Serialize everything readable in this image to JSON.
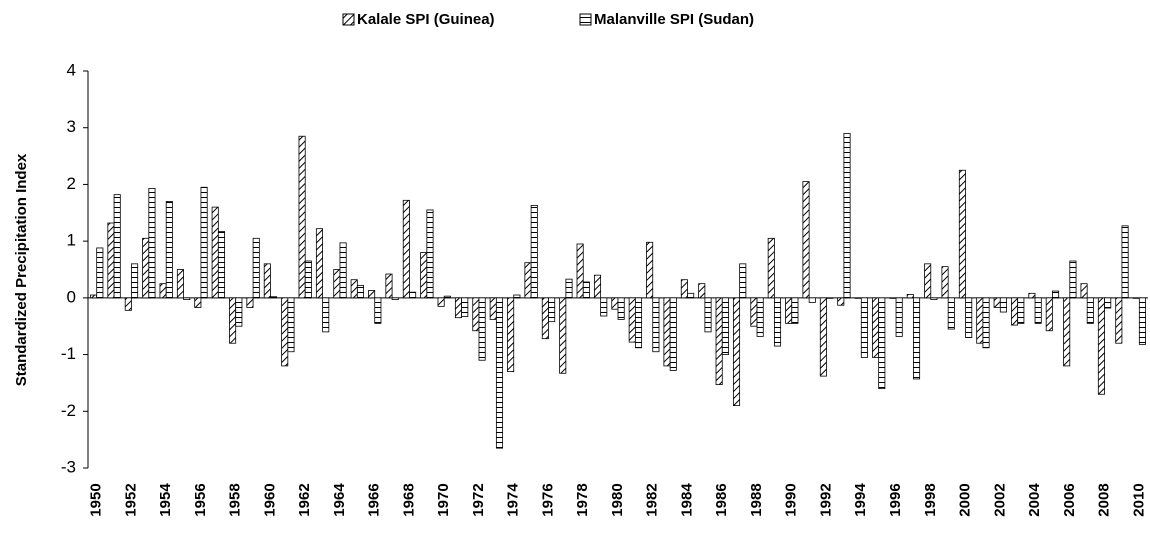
{
  "chart_data": {
    "type": "bar",
    "y_label": "Standardized Precipitation Index",
    "x": [
      1950,
      1951,
      1952,
      1953,
      1954,
      1955,
      1956,
      1957,
      1958,
      1959,
      1960,
      1961,
      1962,
      1963,
      1964,
      1965,
      1966,
      1967,
      1968,
      1969,
      1970,
      1971,
      1972,
      1973,
      1974,
      1975,
      1976,
      1977,
      1978,
      1979,
      1980,
      1981,
      1982,
      1983,
      1984,
      1985,
      1986,
      1987,
      1988,
      1989,
      1990,
      1991,
      1992,
      1993,
      1994,
      1995,
      1996,
      1997,
      1998,
      1999,
      2000,
      2001,
      2002,
      2003,
      2004,
      2005,
      2006,
      2007,
      2008,
      2009,
      2010
    ],
    "xlim": [
      1949.5,
      2010.5
    ],
    "xticks": [
      1950,
      1952,
      1954,
      1956,
      1958,
      1960,
      1962,
      1964,
      1966,
      1968,
      1970,
      1972,
      1974,
      1976,
      1978,
      1980,
      1982,
      1984,
      1986,
      1988,
      1990,
      1992,
      1994,
      1996,
      1998,
      2000,
      2002,
      2004,
      2006,
      2008,
      2010
    ],
    "ylim": [
      -3,
      4
    ],
    "yticks": [
      -3,
      -2,
      -1,
      0,
      1,
      2,
      3,
      4
    ],
    "legend": "top",
    "series": [
      {
        "name": "Kalale SPI (Guinea)",
        "color": "#000000",
        "pattern": "diagonal",
        "values": [
          0.05,
          1.32,
          -0.22,
          1.05,
          0.25,
          0.5,
          -0.17,
          1.6,
          -0.8,
          -0.17,
          0.6,
          -1.2,
          2.85,
          1.22,
          0.5,
          0.32,
          0.13,
          0.42,
          1.72,
          0.8,
          -0.15,
          -0.35,
          -0.58,
          -0.38,
          -1.3,
          0.62,
          -0.72,
          -1.33,
          0.95,
          0.4,
          -0.2,
          -0.78,
          0.98,
          -1.2,
          0.32,
          0.25,
          -1.53,
          -1.9,
          -0.5,
          1.05,
          -0.45,
          2.05,
          -1.38,
          -0.13,
          0,
          -1.05,
          0,
          0.06,
          0.6,
          0.55,
          2.25,
          -0.8,
          -0.17,
          -0.48,
          0.08,
          -0.58,
          -1.2,
          0.25,
          -1.7,
          -0.8,
          0
        ]
      },
      {
        "name": "Malanville SPI (Sudan)",
        "color": "#000000",
        "pattern": "horizontal",
        "values": [
          0.88,
          1.82,
          0.6,
          1.93,
          1.7,
          -0.03,
          1.95,
          1.17,
          -0.5,
          1.05,
          0.02,
          -0.95,
          0.65,
          -0.6,
          0.97,
          0.22,
          -0.45,
          -0.03,
          0.1,
          1.55,
          0.03,
          -0.33,
          -1.1,
          -2.65,
          0.05,
          1.63,
          -0.42,
          0.33,
          0.28,
          -0.32,
          -0.38,
          -0.88,
          -0.95,
          -1.28,
          0.08,
          -0.6,
          -1.0,
          0.6,
          -0.68,
          -0.85,
          -0.45,
          -0.08,
          0,
          2.9,
          -1.05,
          -1.6,
          -0.68,
          -1.43,
          -0.03,
          -0.55,
          -0.7,
          -0.88,
          -0.25,
          -0.45,
          -0.45,
          0.12,
          0.65,
          -0.45,
          -0.18,
          1.27,
          -0.82
        ]
      }
    ]
  }
}
